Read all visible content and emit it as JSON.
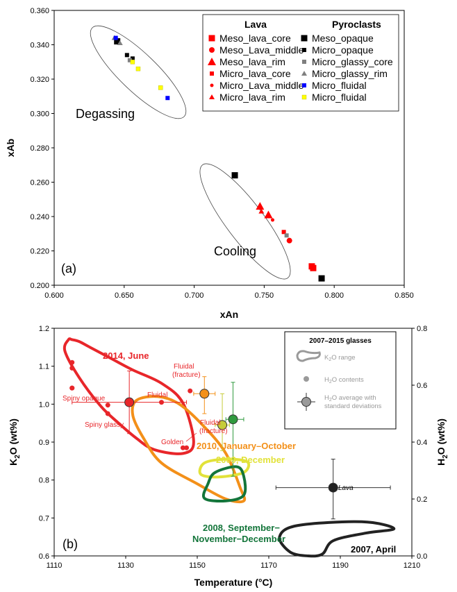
{
  "chart_data": [
    {
      "type": "scatter",
      "panel_label": "(a)",
      "xlabel": "xAn",
      "ylabel": "xAb",
      "xlim": [
        0.6,
        0.85
      ],
      "ylim": [
        0.2,
        0.36
      ],
      "x_ticks": [
        "0.600",
        "0.650",
        "0.700",
        "0.750",
        "0.800",
        "0.850"
      ],
      "y_ticks": [
        "0.200",
        "0.220",
        "0.240",
        "0.260",
        "0.280",
        "0.300",
        "0.320",
        "0.340",
        "0.360"
      ],
      "grid": false,
      "legend_position": "top-right",
      "legend_groups": [
        "Lava",
        "Pyroclasts"
      ],
      "annotations": [
        "Degassing",
        "Cooling"
      ],
      "series": [
        {
          "name": "Meso_lava_core",
          "group": "Lava",
          "color": "#ff0000",
          "marker": "square-large",
          "points": [
            [
              0.784,
              0.211
            ],
            [
              0.785,
              0.21
            ]
          ]
        },
        {
          "name": "Meso_Lava_middle",
          "group": "Lava",
          "color": "#ff0000",
          "marker": "circle",
          "points": [
            [
              0.768,
              0.226
            ]
          ]
        },
        {
          "name": "Meso_lava_rim",
          "group": "Lava",
          "color": "#ff0000",
          "marker": "triangle-large",
          "points": [
            [
              0.747,
              0.246
            ],
            [
              0.753,
              0.241
            ]
          ]
        },
        {
          "name": "Micro_lava_core",
          "group": "Lava",
          "color": "#ff0000",
          "marker": "square-small",
          "points": [
            [
              0.764,
              0.231
            ]
          ]
        },
        {
          "name": "Micro_Lava_middle",
          "group": "Lava",
          "color": "#ff0000",
          "marker": "circle-small",
          "points": [
            [
              0.756,
              0.238
            ]
          ]
        },
        {
          "name": "Micro_lava_rim",
          "group": "Lava",
          "color": "#ff0000",
          "marker": "triangle-small",
          "points": [
            [
              0.748,
              0.243
            ]
          ]
        },
        {
          "name": "Meso_opaque",
          "group": "Pyroclasts",
          "color": "#000000",
          "marker": "square-large",
          "points": [
            [
              0.645,
              0.342
            ],
            [
              0.729,
              0.264
            ],
            [
              0.791,
              0.204
            ]
          ]
        },
        {
          "name": "Micro_opaque",
          "group": "Pyroclasts",
          "color": "#000000",
          "marker": "square-small",
          "points": [
            [
              0.652,
              0.334
            ],
            [
              0.656,
              0.332
            ]
          ]
        },
        {
          "name": "Micro_glassy_core",
          "group": "Pyroclasts",
          "color": "#7f7f7f",
          "marker": "square-small",
          "points": [
            [
              0.654,
              0.331
            ],
            [
              0.766,
              0.229
            ]
          ]
        },
        {
          "name": "Micro_glassy_rim",
          "group": "Pyroclasts",
          "color": "#7f7f7f",
          "marker": "triangle-small",
          "points": [
            [
              0.647,
              0.341
            ],
            [
              0.643,
              0.344
            ]
          ]
        },
        {
          "name": "Micro_fluidal",
          "group": "Pyroclasts",
          "color": "#0000ff",
          "marker": "square-small",
          "points": [
            [
              0.644,
              0.344
            ],
            [
              0.681,
              0.309
            ]
          ]
        },
        {
          "name": "Micro_fluidal",
          "group": "Pyroclasts",
          "color": "#ffff00",
          "marker": "square-small",
          "points": [
            [
              0.656,
              0.33
            ],
            [
              0.66,
              0.326
            ],
            [
              0.676,
              0.315
            ]
          ]
        }
      ]
    },
    {
      "type": "scatter",
      "panel_label": "(b)",
      "xlabel": "Temperature (°C)",
      "ylabel_left": "K2O (wt%)",
      "ylabel_right": "H2O (wt%)",
      "xlim": [
        1110,
        1210
      ],
      "ylim_left": [
        0.6,
        1.2
      ],
      "ylim_right": [
        0.0,
        0.8
      ],
      "x_ticks": [
        "1110",
        "1130",
        "1150",
        "1170",
        "1190",
        "1210"
      ],
      "y_ticks_left": [
        "0.6",
        "0.7",
        "0.8",
        "0.9",
        "1.0",
        "1.1",
        "1.2"
      ],
      "y_ticks_right": [
        "0.0",
        "0.2",
        "0.4",
        "0.6",
        "0.8"
      ],
      "grid": false,
      "legend_title": "2007–2015 glasses",
      "legend_items": [
        "K2O range",
        "H2O contents",
        "H2O average with standard deviations"
      ],
      "series": [
        {
          "name": "2014, June",
          "color": "#e8262a",
          "label_color": "#e8262a",
          "k2o_range_outline": [
            [
              1115,
              1170
            ],
            [
              1117,
              1165
            ],
            [
              1120,
              1150
            ],
            [
              1126,
              1120
            ],
            [
              1132,
              1090
            ],
            [
              1140,
              1055
            ],
            [
              1146,
              1003
            ],
            [
              1149,
              900
            ],
            [
              1146,
              870
            ],
            [
              1138,
              880
            ],
            [
              1133,
              910
            ],
            [
              1128,
              950
            ],
            [
              1123,
              995
            ],
            [
              1117,
              1070
            ],
            [
              1113,
              1140
            ],
            [
              1114,
              1170
            ]
          ]
        },
        {
          "name": "2010, January–October",
          "color": "#f39019",
          "label_color": "#f39019",
          "k2o_range_outline": [
            [
              1133,
              1010
            ],
            [
              1139,
              1020
            ],
            [
              1145,
              1000
            ],
            [
              1152,
              940
            ],
            [
              1158,
              870
            ],
            [
              1162,
              780
            ],
            [
              1163,
              745
            ],
            [
              1158,
              750
            ],
            [
              1150,
              790
            ],
            [
              1140,
              845
            ],
            [
              1135,
              910
            ],
            [
              1132,
              970
            ]
          ]
        },
        {
          "name": "2009, December",
          "color": "#e2e23a",
          "label_color": "#e2e23a",
          "k2o_range_outline": [
            [
              1152,
              845
            ],
            [
              1158,
              855
            ],
            [
              1164,
              848
            ],
            [
              1163,
              820
            ],
            [
              1156,
              808
            ],
            [
              1151,
              815
            ]
          ]
        },
        {
          "name": "2008, September–November–December",
          "color": "#13753a",
          "label_color": "#13753a",
          "k2o_range_outline": [
            [
              1155,
              820
            ],
            [
              1161,
              835
            ],
            [
              1163,
              810
            ],
            [
              1163,
              760
            ],
            [
              1158,
              745
            ],
            [
              1152,
              752
            ],
            [
              1153,
              790
            ]
          ]
        },
        {
          "name": "2007, April",
          "color": "#222222",
          "label_color": "#000000",
          "k2o_range_outline": [
            [
              1181,
              600
            ],
            [
              1176,
              610
            ],
            [
              1173,
              650
            ],
            [
              1178,
              680
            ],
            [
              1196,
              690
            ],
            [
              1205,
              672
            ],
            [
              1197,
              660
            ],
            [
              1188,
              640
            ],
            [
              1185,
              605
            ]
          ]
        },
        {
          "name": "Lava",
          "color": "#222222",
          "label_color": "#000000"
        }
      ],
      "h2o_points_2014": [
        [
          1115,
          0.68
        ],
        [
          1115,
          0.66
        ],
        [
          1115,
          0.59
        ],
        [
          1115,
          0.59
        ],
        [
          1125,
          0.53
        ],
        [
          1125,
          0.5
        ],
        [
          1140,
          0.54
        ],
        [
          1148,
          0.58
        ],
        [
          1146,
          0.38
        ],
        [
          1147,
          0.38
        ]
      ],
      "h2o_averages": [
        {
          "series": "2014, June",
          "x": 1131,
          "y": 0.54,
          "yerr_low": 0.43,
          "yerr_high": 0.65,
          "xerr_low": 1115,
          "xerr_high": 1147,
          "color": "#e8262a"
        },
        {
          "series": "2010, January–October",
          "x": 1152,
          "y": 0.57,
          "yerr_low": 0.5,
          "yerr_high": 0.63,
          "xerr_low": 1149,
          "xerr_high": 1155,
          "color": "#f39019"
        },
        {
          "series": "2009, December",
          "x": 1157,
          "y": 0.46,
          "yerr_low": 0.37,
          "yerr_high": 0.57,
          "xerr_low": 1155,
          "xerr_high": 1159,
          "color": "#c6cc3a"
        },
        {
          "series": "2008, September–November–December",
          "x": 1160,
          "y": 0.48,
          "yerr_low": 0.28,
          "yerr_high": 0.61,
          "xerr_low": 1158,
          "xerr_high": 1163,
          "color": "#2f9a3e"
        },
        {
          "series": "Lava",
          "x": 1188,
          "y": 0.24,
          "yerr_low": 0.13,
          "yerr_high": 0.34,
          "xerr_low": 1172,
          "xerr_high": 1204,
          "color": "#222222"
        }
      ],
      "annotations": [
        "Spiny opaque",
        "Spiny glassy",
        "Fluidal",
        "Fluidal (fracture)",
        "Fluidal (fracture)",
        "Golden"
      ]
    }
  ]
}
